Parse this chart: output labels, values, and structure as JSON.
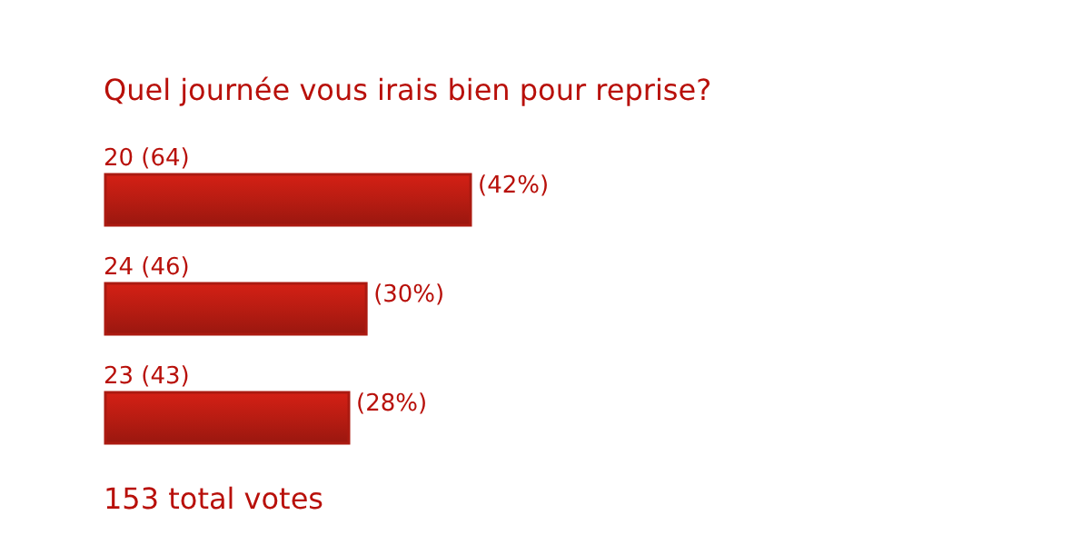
{
  "chart_data": {
    "type": "bar",
    "orientation": "horizontal",
    "title": "Quel journée vous irais bien pour reprise?",
    "categories": [
      "20 (64)",
      "24 (46)",
      "23 (43)"
    ],
    "values": [
      42,
      30,
      28
    ],
    "value_labels": [
      "(42%)",
      "(30%)",
      "(28%)"
    ],
    "color": "#b81c12",
    "annotations": [
      "153 total votes"
    ]
  }
}
